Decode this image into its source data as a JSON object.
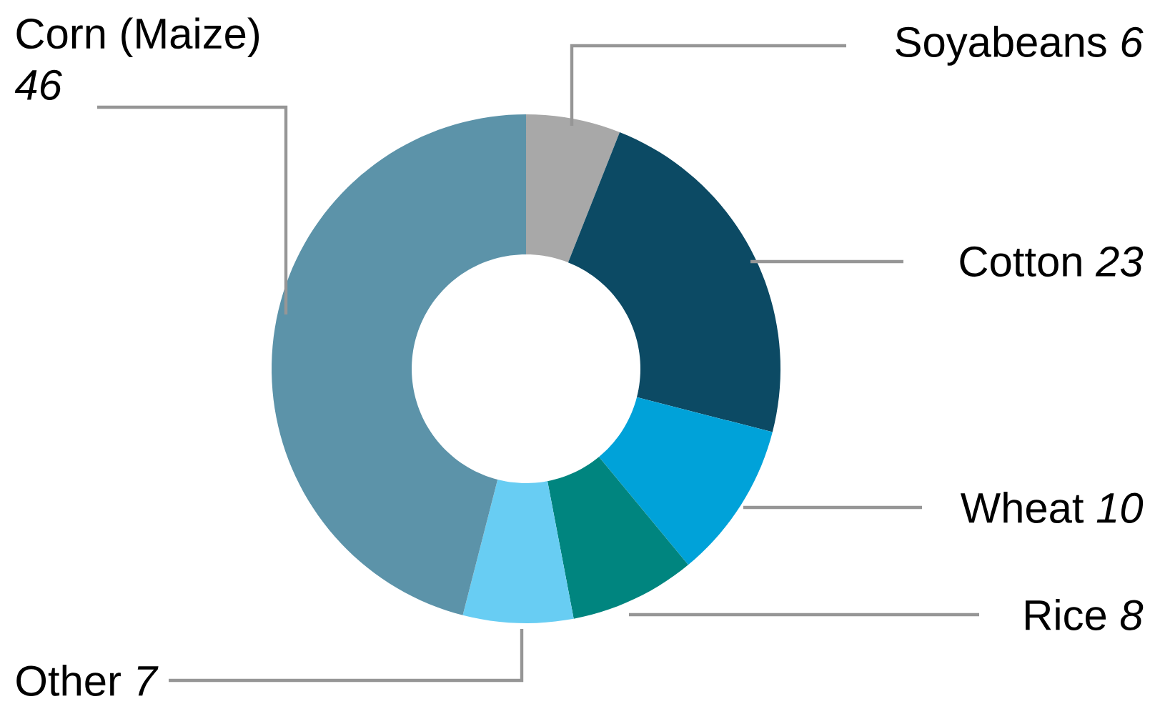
{
  "chart_data": {
    "type": "donut",
    "categories": [
      "Soyabeans",
      "Cotton",
      "Wheat",
      "Rice",
      "Other",
      "Corn (Maize)"
    ],
    "values": [
      6,
      23,
      10,
      8,
      7,
      46
    ],
    "colors": [
      "#a8a8a8",
      "#0c4a64",
      "#00a2d9",
      "#00857f",
      "#68cdf3",
      "#5c93a9"
    ],
    "data_labels": true
  }
}
